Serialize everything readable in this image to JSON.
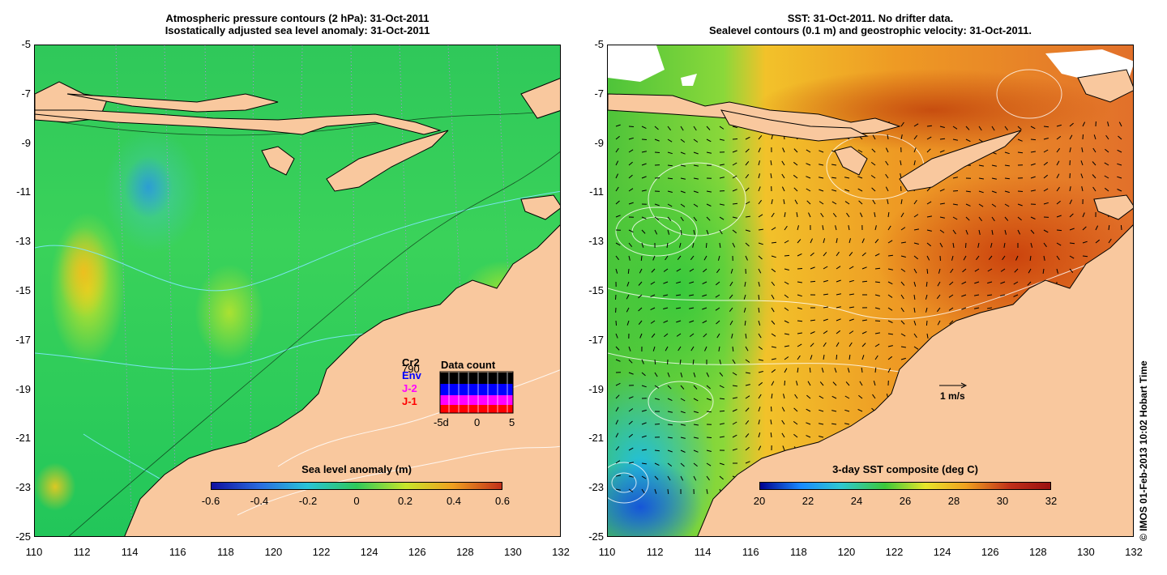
{
  "left_panel": {
    "title_line1": "Atmospheric pressure contours (2 hPa): 31-Oct-2011",
    "title_line2": "Isostatically adjusted sea level anomaly: 31-Oct-2011",
    "colorbar": {
      "title": "Sea level anomaly (m)",
      "ticks": [
        "-0.6",
        "-0.4",
        "-0.2",
        "0",
        "0.2",
        "0.4",
        "0.6"
      ]
    },
    "legend": {
      "items": [
        {
          "label": "Cr2",
          "color": "#000000"
        },
        {
          "label": "Env",
          "color": "#0000ff"
        },
        {
          "label": "J-2",
          "color": "#ff00ff"
        },
        {
          "label": "J-1",
          "color": "#ff0000"
        }
      ],
      "count_label": "790",
      "inset_title": "Data count",
      "inset_ticks": [
        "-5d",
        "0",
        "5"
      ]
    }
  },
  "right_panel": {
    "title_line1": "SST: 31-Oct-2011. No drifter data.",
    "title_line2": "Sealevel contours (0.1 m) and geostrophic velocity: 31-Oct-2011.",
    "scale_label": "1 m/s",
    "colorbar": {
      "title": "3-day SST composite (deg C)",
      "ticks": [
        "20",
        "22",
        "24",
        "26",
        "28",
        "30",
        "32"
      ]
    }
  },
  "axes": {
    "y_ticks": [
      "-5",
      "-7",
      "-9",
      "-11",
      "-13",
      "-15",
      "-17",
      "-19",
      "-21",
      "-23",
      "-25"
    ],
    "x_ticks": [
      "110",
      "112",
      "114",
      "116",
      "118",
      "120",
      "122",
      "124",
      "126",
      "128",
      "130",
      "132"
    ]
  },
  "credit": "© IMOS 01-Feb-2013 10:02 Hobart Time",
  "colors": {
    "land": "#f9c89e",
    "sla_colormap": [
      "#1010a0",
      "#2a6ee0",
      "#29c3d8",
      "#2fc85a",
      "#c8e62a",
      "#f0a020",
      "#c0301a"
    ],
    "sst_colormap": [
      "#00008f",
      "#1a8aff",
      "#2fc8d0",
      "#3cc83a",
      "#e8e62a",
      "#f0a020",
      "#c0301a",
      "#9a1010"
    ]
  }
}
